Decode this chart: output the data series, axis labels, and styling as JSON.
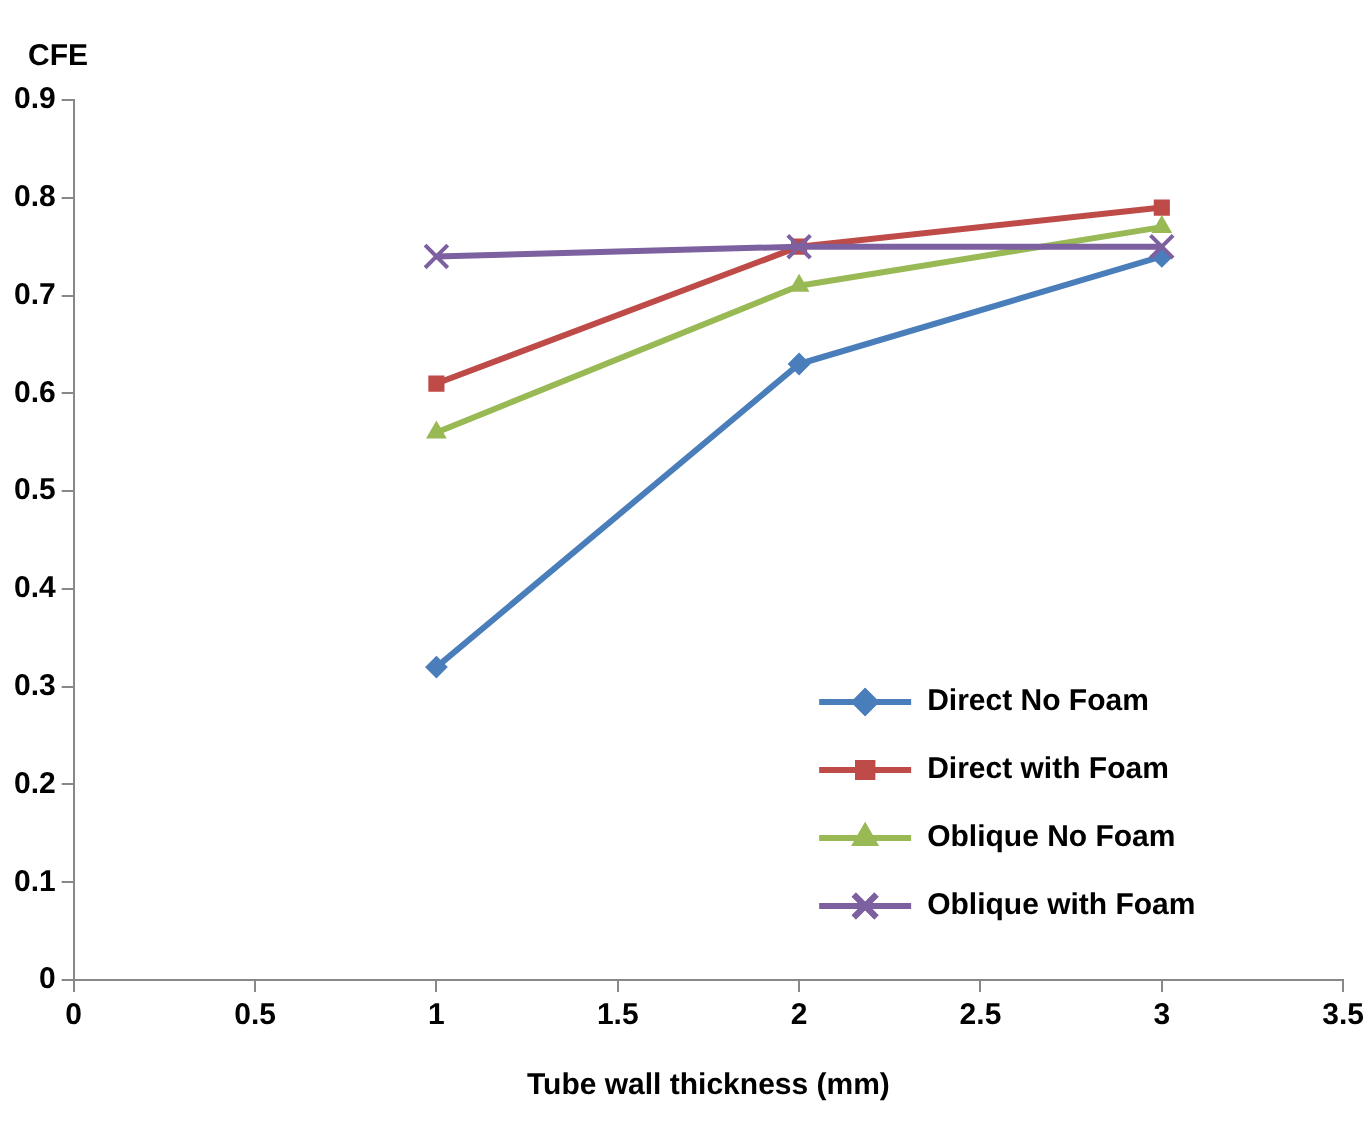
{
  "chart_data": {
    "type": "line",
    "ylabel": "CFE",
    "xlabel": "Tube wall thickness (mm)",
    "x": [
      1,
      2,
      3
    ],
    "series": [
      {
        "name": "Direct No Foam",
        "color": "#4a7ebb",
        "marker": "diamond",
        "values": [
          0.32,
          0.63,
          0.74
        ]
      },
      {
        "name": "Direct with Foam",
        "color": "#be4b48",
        "marker": "square",
        "values": [
          0.61,
          0.75,
          0.79
        ]
      },
      {
        "name": "Oblique No Foam",
        "color": "#98b954",
        "marker": "triangle",
        "values": [
          0.56,
          0.71,
          0.77
        ]
      },
      {
        "name": "Oblique with Foam",
        "color": "#7d60a0",
        "marker": "cross",
        "values": [
          0.74,
          0.75,
          0.75
        ]
      }
    ],
    "xlim": [
      0,
      3.5
    ],
    "xticks": [
      0,
      0.5,
      1,
      1.5,
      2,
      2.5,
      3,
      3.5
    ],
    "ylim": [
      0,
      0.9
    ],
    "yticks": [
      0,
      0.1,
      0.2,
      0.3,
      0.4,
      0.5,
      0.6,
      0.7,
      0.8,
      0.9
    ],
    "grid": false,
    "legend": "bottom right",
    "line_style": "solid"
  }
}
